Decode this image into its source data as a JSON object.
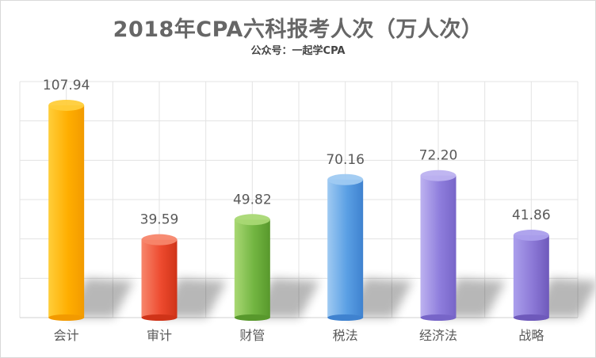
{
  "chart_data": {
    "type": "bar",
    "title": "2018年CPA六科报考人次（万人次）",
    "subtitle": "公众号：一起学CPA",
    "categories": [
      "会计",
      "审计",
      "财管",
      "税法",
      "经济法",
      "战略"
    ],
    "values": [
      107.94,
      39.59,
      49.82,
      70.16,
      72.2,
      41.86
    ],
    "value_labels": [
      "107.94",
      "39.59",
      "49.82",
      "70.16",
      "72.20",
      "41.86"
    ],
    "ylim": [
      0,
      120
    ],
    "grid": true,
    "legend": "none",
    "xlabel": "",
    "ylabel": "",
    "colors": [
      [
        "#ffce3a",
        "#ffae00",
        "#f29a00"
      ],
      [
        "#f7866c",
        "#ed4a2e",
        "#cf3318"
      ],
      [
        "#a9d874",
        "#72b541",
        "#58982c"
      ],
      [
        "#9fcaf2",
        "#5a9fe4",
        "#3f82cf"
      ],
      [
        "#bdb2f0",
        "#8e7ddc",
        "#7765c8"
      ],
      [
        "#ab9fec",
        "#8b78d6",
        "#6e59bb"
      ]
    ]
  }
}
